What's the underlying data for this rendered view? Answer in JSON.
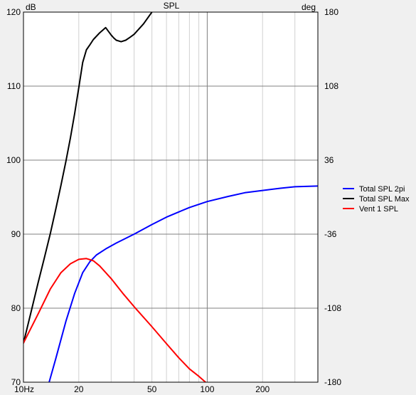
{
  "chart_data": {
    "type": "line",
    "title": "SPL",
    "y_left_unit": "dB",
    "y_right_unit": "deg",
    "x_scale": "log",
    "xlim": [
      10,
      400
    ],
    "ylim": [
      70,
      120
    ],
    "y2lim": [
      -180,
      180
    ],
    "grid": true,
    "legend_position": "right",
    "x_ticks": [
      {
        "value": 10,
        "label": "10Hz"
      },
      {
        "value": 20,
        "label": "20"
      },
      {
        "value": 50,
        "label": "50"
      },
      {
        "value": 100,
        "label": "100"
      },
      {
        "value": 200,
        "label": "200"
      }
    ],
    "y_ticks": [
      {
        "value": 70,
        "label": "70"
      },
      {
        "value": 80,
        "label": "80"
      },
      {
        "value": 90,
        "label": "90"
      },
      {
        "value": 100,
        "label": "100"
      },
      {
        "value": 110,
        "label": "110"
      },
      {
        "value": 120,
        "label": "120"
      }
    ],
    "y2_ticks": [
      {
        "value": -180,
        "label": "-180"
      },
      {
        "value": -108,
        "label": "-108"
      },
      {
        "value": -36,
        "label": "-36"
      },
      {
        "value": 36,
        "label": "36"
      },
      {
        "value": 108,
        "label": "108"
      },
      {
        "value": 180,
        "label": "180"
      }
    ],
    "series": [
      {
        "name": "Total SPL 2pi",
        "color": "#0000ff",
        "x": [
          13.8,
          15,
          17,
          19,
          21,
          23,
          25,
          28,
          32,
          40,
          50,
          60,
          70,
          80,
          100,
          130,
          160,
          200,
          250,
          300,
          400
        ],
        "y": [
          70,
          73.2,
          78.2,
          82.0,
          84.8,
          86.3,
          87.2,
          88.0,
          88.8,
          90.0,
          91.3,
          92.3,
          93.0,
          93.6,
          94.4,
          95.1,
          95.6,
          95.9,
          96.2,
          96.4,
          96.5
        ]
      },
      {
        "name": "Total SPL Max",
        "color": "#000000",
        "x": [
          10,
          11,
          12,
          13,
          14,
          15,
          16,
          17,
          18,
          19,
          20,
          21,
          22,
          23,
          24,
          26,
          28,
          30,
          31,
          32,
          34,
          36,
          38,
          40,
          45,
          50,
          55
        ],
        "y": [
          75.3,
          79.5,
          83.4,
          86.8,
          90.1,
          93.4,
          96.6,
          99.8,
          103.0,
          106.3,
          109.8,
          113.2,
          114.9,
          115.6,
          116.3,
          117.2,
          117.9,
          116.9,
          116.5,
          116.2,
          116.0,
          116.2,
          116.6,
          117.0,
          118.4,
          120.0,
          121.5
        ]
      },
      {
        "name": "Vent 1 SPL",
        "color": "#ff0000",
        "x": [
          10,
          12,
          14,
          16,
          18,
          20,
          22,
          24,
          26,
          30,
          35,
          40,
          50,
          60,
          70,
          80,
          90,
          100
        ],
        "y": [
          75.3,
          79.2,
          82.6,
          84.8,
          86.0,
          86.6,
          86.7,
          86.4,
          85.7,
          84.0,
          81.9,
          80.2,
          77.5,
          75.2,
          73.3,
          71.8,
          70.8,
          69.8
        ]
      }
    ]
  }
}
